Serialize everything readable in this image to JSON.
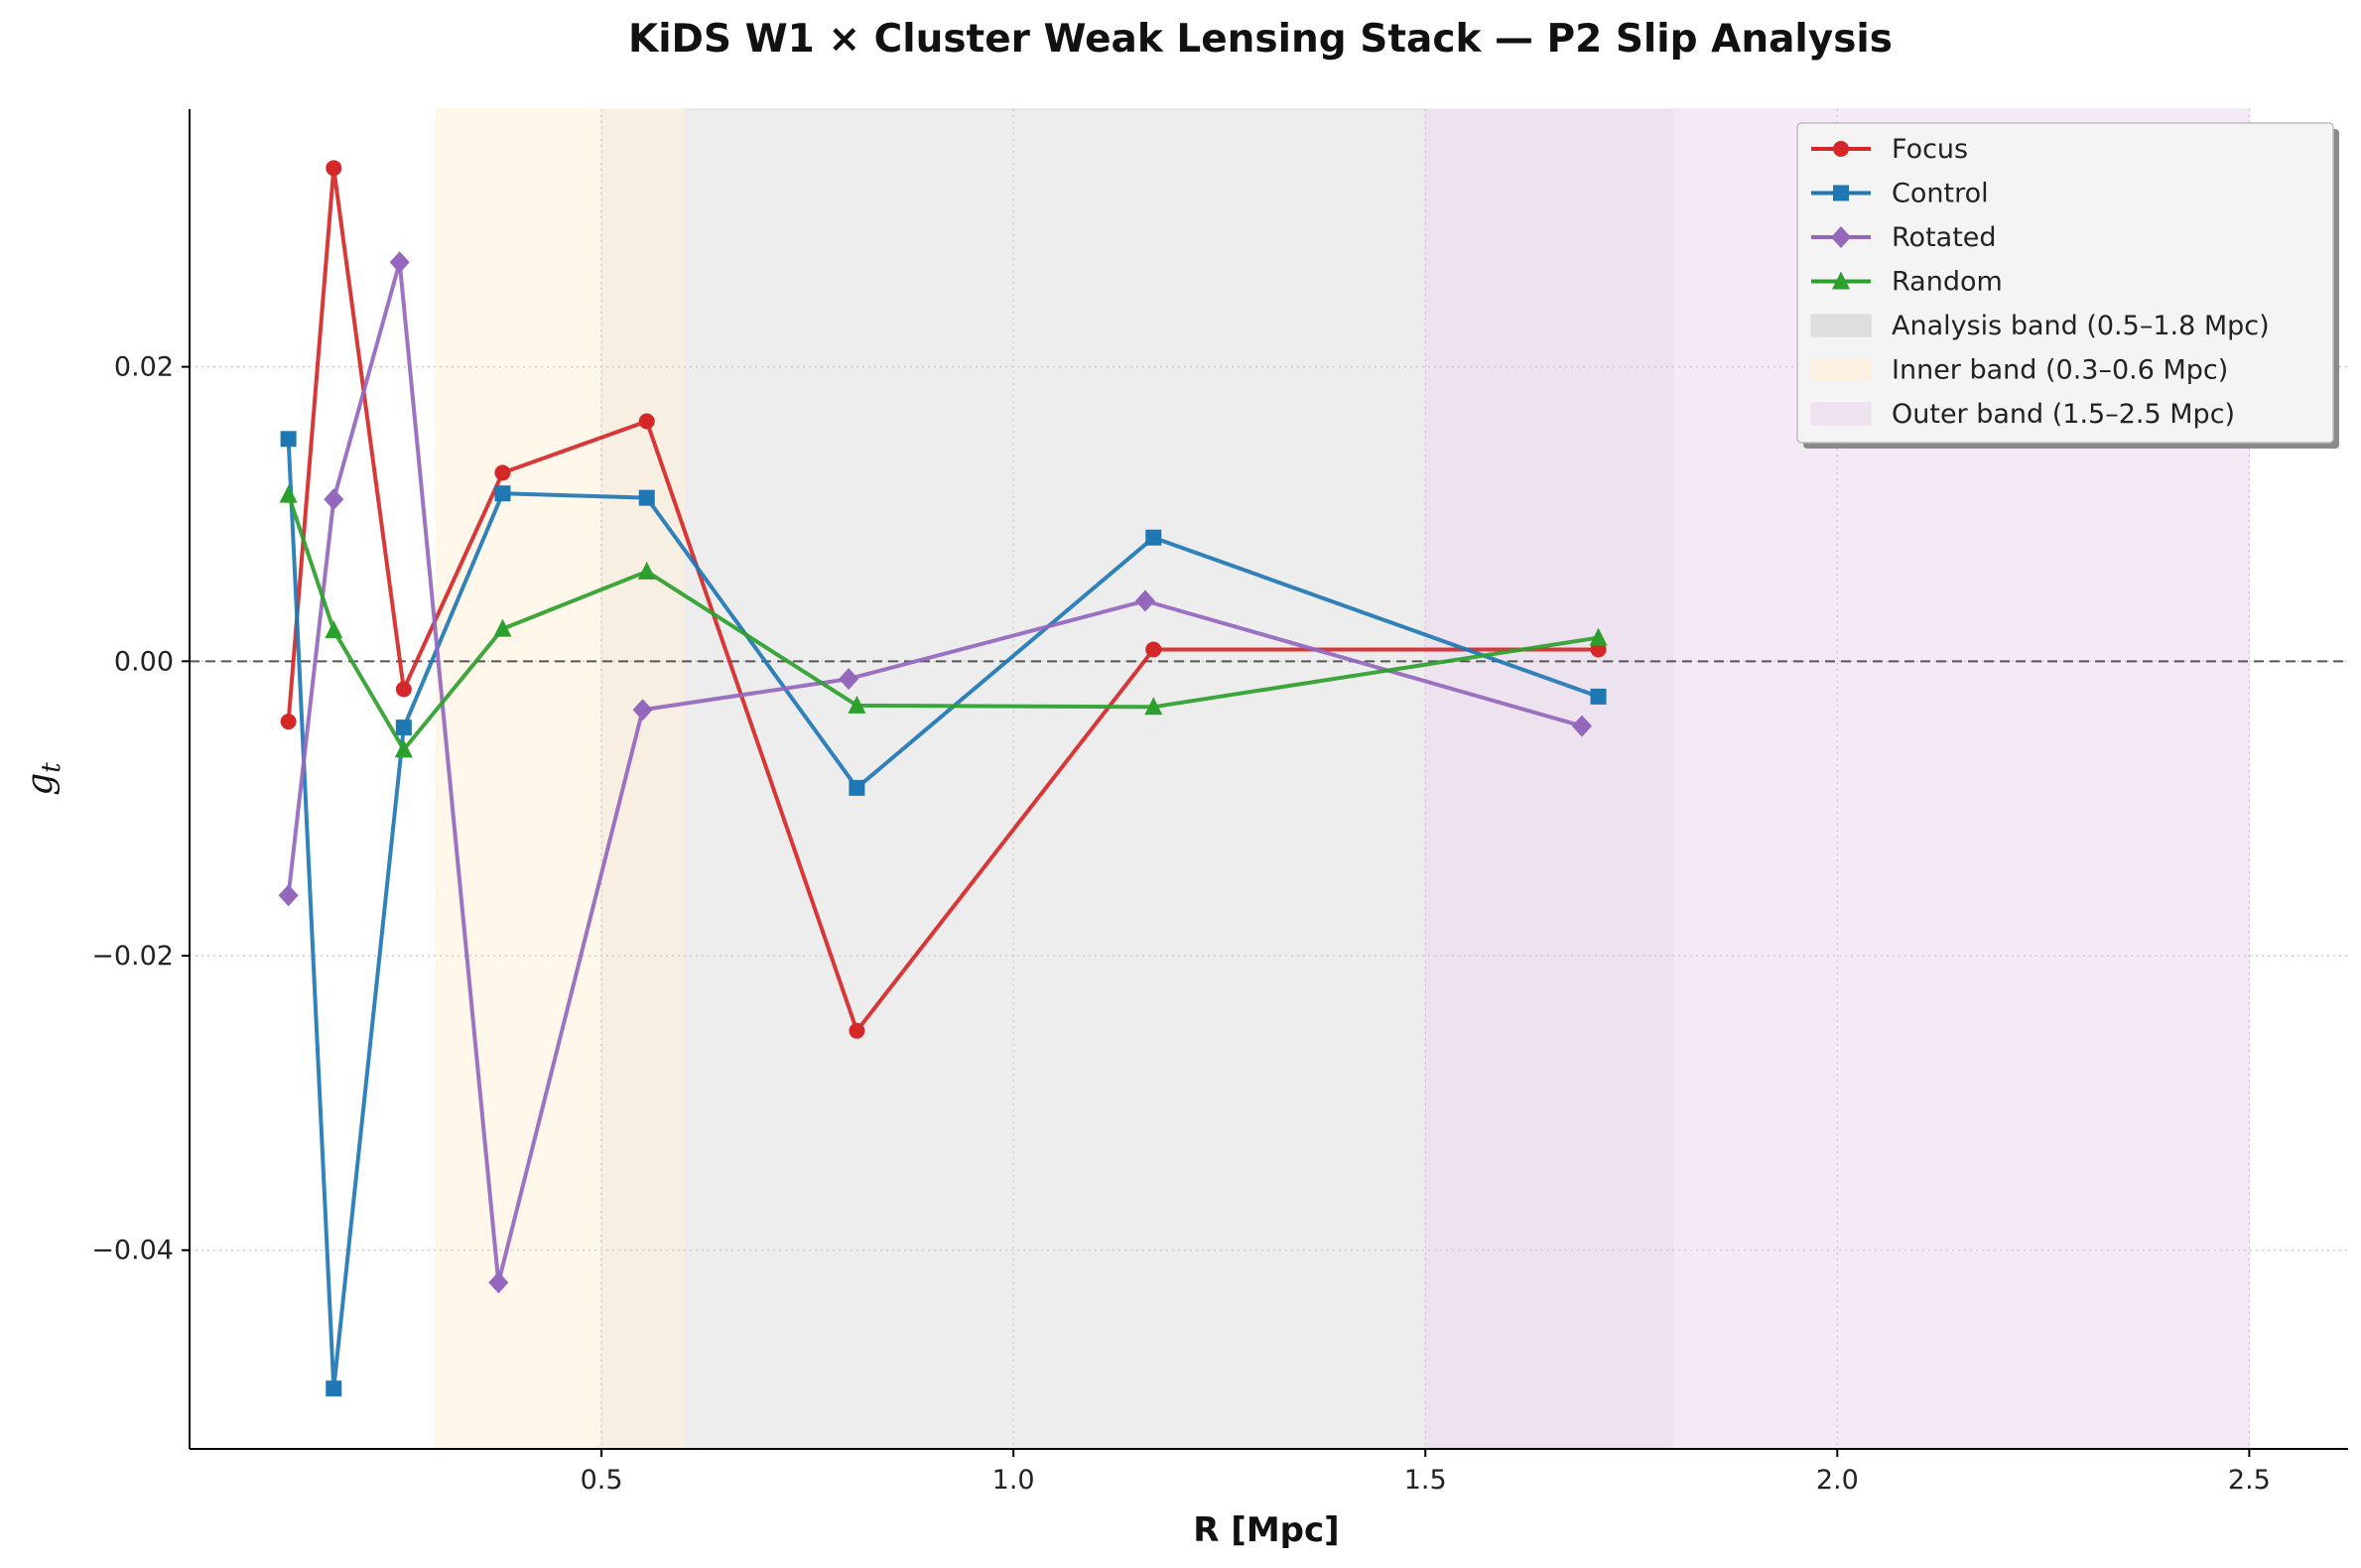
{
  "chart_data": {
    "type": "line",
    "title": "KiDS W1 × Cluster Weak Lensing Stack — P2 Slip Analysis",
    "xlabel": "R [Mpc]",
    "ylabel_main": "g",
    "ylabel_sub": "t",
    "xlim": [
      0.0,
      2.62
    ],
    "ylim": [
      -0.0535,
      0.0375
    ],
    "xticks": [
      0.5,
      1.0,
      1.5,
      2.0,
      2.5
    ],
    "xtick_labels": [
      "0.5",
      "1.0",
      "1.5",
      "2.0",
      "2.5"
    ],
    "yticks": [
      -0.04,
      -0.02,
      0.0,
      0.02
    ],
    "ytick_labels": [
      "−0.04",
      "−0.02",
      "0.00",
      "0.02"
    ],
    "grid": true,
    "reference_line": 0.0,
    "bands": [
      {
        "label": "Analysis band (0.5–1.8 Mpc)",
        "x0": 0.5,
        "x1": 1.8,
        "color": "#d8d8d8"
      },
      {
        "label": "Inner band (0.3–0.6 Mpc)",
        "x0": 0.3,
        "x1": 0.6,
        "color": "#fdf0d9"
      },
      {
        "label": "Outer band (1.5–2.5 Mpc)",
        "x0": 1.5,
        "x1": 2.5,
        "color": "#eddcee"
      }
    ],
    "series": [
      {
        "name": "Focus",
        "color": "#d62728",
        "marker": "circle",
        "x": [
          0.12,
          0.175,
          0.26,
          0.38,
          0.555,
          0.81,
          1.17,
          1.71
        ],
        "y": [
          -0.0041,
          0.0335,
          -0.0019,
          0.0128,
          0.0163,
          -0.0251,
          0.0008,
          0.0008
        ]
      },
      {
        "name": "Control",
        "color": "#1f77b4",
        "marker": "square",
        "x": [
          0.12,
          0.175,
          0.26,
          0.38,
          0.555,
          0.81,
          1.17,
          1.71
        ],
        "y": [
          0.0151,
          -0.0494,
          -0.0045,
          0.0114,
          0.0111,
          -0.0086,
          0.0084,
          -0.0024
        ]
      },
      {
        "name": "Rotated",
        "color": "#9467bd",
        "marker": "diamond",
        "x": [
          0.12,
          0.175,
          0.255,
          0.375,
          0.55,
          0.8,
          1.16,
          1.69
        ],
        "y": [
          -0.0159,
          0.011,
          0.0271,
          -0.0422,
          -0.0033,
          -0.0012,
          0.0041,
          -0.0044
        ]
      },
      {
        "name": "Random",
        "color": "#2ca02c",
        "marker": "triangle",
        "x": [
          0.12,
          0.175,
          0.26,
          0.38,
          0.555,
          0.81,
          1.17,
          1.71
        ],
        "y": [
          0.0113,
          0.0021,
          -0.006,
          0.0022,
          0.0061,
          -0.003,
          -0.0031,
          0.0016
        ]
      }
    ],
    "legend_position": "top-right"
  }
}
